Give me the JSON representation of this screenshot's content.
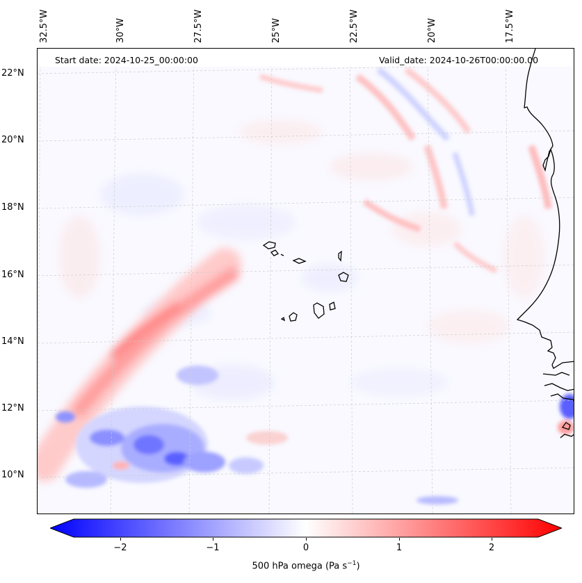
{
  "map": {
    "annotations": {
      "start_date": "Start date: 2024-10-25_00:00:00",
      "valid_date": "Valid_date: 2024-10-26T00:00:00.00"
    },
    "longitude_labels": [
      "32.5°W",
      "30°W",
      "27.5°W",
      "25°W",
      "22.5°W",
      "20°W",
      "17.5°W"
    ],
    "latitude_labels": [
      "22°N",
      "20°N",
      "18°N",
      "16°N",
      "14°N",
      "12°N",
      "10°N"
    ],
    "field": "500 hPa omega",
    "colormap": {
      "negative": "#0000ff",
      "zero": "#ffffff",
      "positive": "#ff0000"
    }
  },
  "colorbar": {
    "tick_labels": [
      "−2",
      "−1",
      "0",
      "1",
      "2"
    ],
    "tick_values": [
      -2,
      -1,
      0,
      1,
      2
    ],
    "range": [
      -2.6,
      2.6
    ],
    "label_main": "500 hPa omega (Pa s",
    "label_sup": "−1",
    "label_end": ")"
  }
}
